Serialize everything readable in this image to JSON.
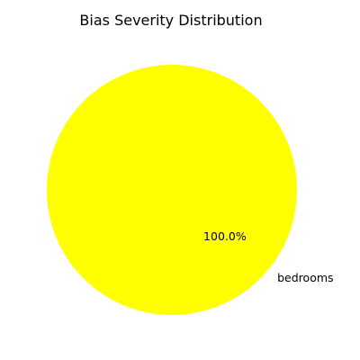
{
  "chart_data": {
    "type": "pie",
    "title": "Bias Severity Distribution",
    "slices": [
      {
        "label": "bedrooms",
        "value": 100,
        "percent_label": "100.0%",
        "color": "#ffff00"
      }
    ],
    "start_angle_deg": 90,
    "legend": "none"
  }
}
